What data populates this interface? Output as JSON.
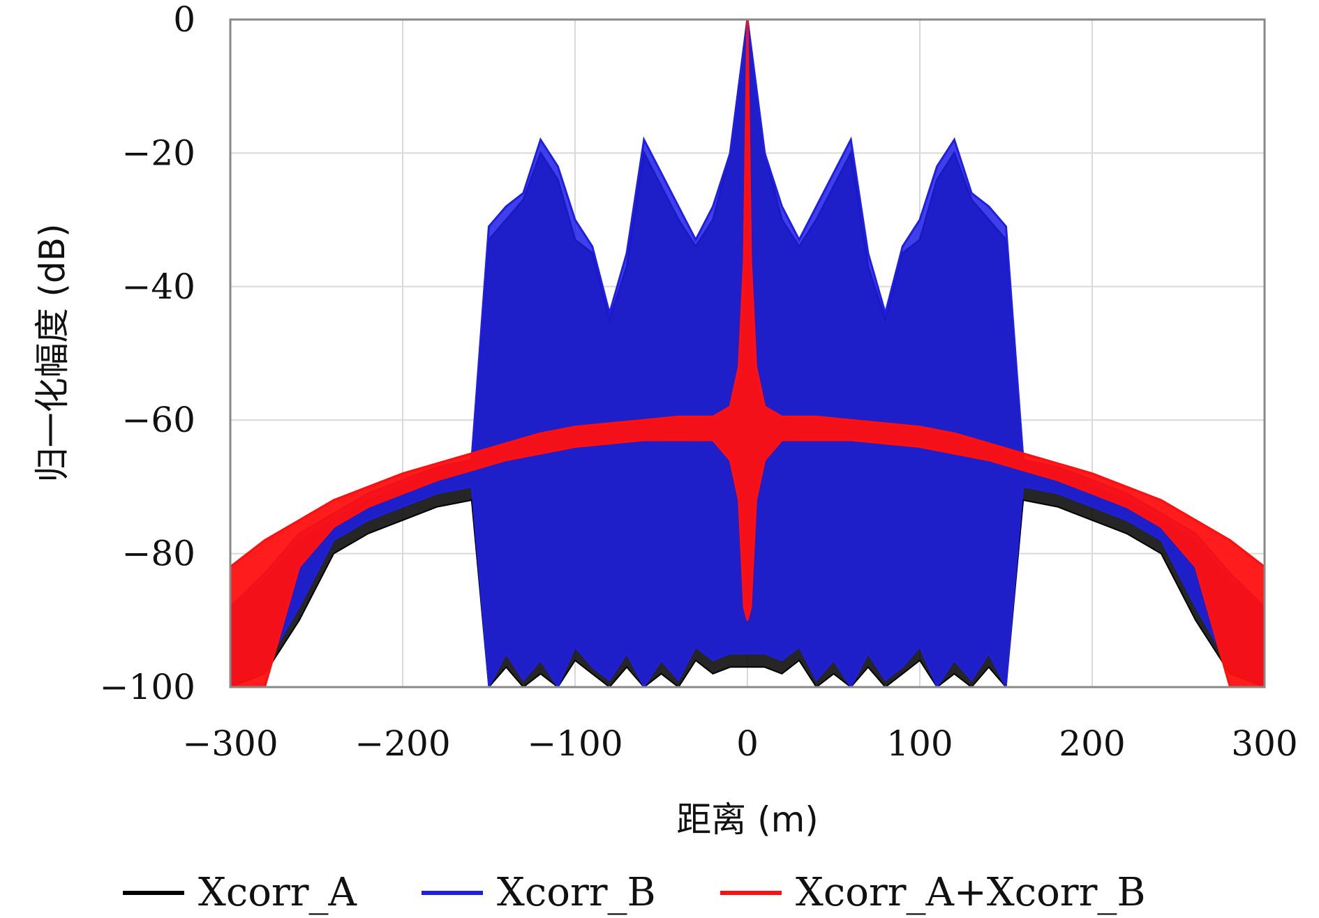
{
  "chart_data": {
    "type": "line",
    "title": "",
    "xlabel": "距离 (m)",
    "ylabel": "归一化幅度 (dB)",
    "xlim": [
      -300,
      300
    ],
    "ylim": [
      -100,
      0
    ],
    "grid": true,
    "x_ticks": [
      -300,
      -200,
      -100,
      0,
      100,
      200,
      300
    ],
    "y_ticks": [
      0,
      -20,
      -40,
      -60,
      -80,
      -100
    ],
    "x_tick_labels": [
      "−300",
      "−200",
      "−100",
      "0",
      "100",
      "200",
      "300"
    ],
    "y_tick_labels": [
      "0",
      "−20",
      "−40",
      "−60",
      "−80",
      "−100"
    ],
    "legend_position": "bottom",
    "series": [
      {
        "name": "Xcorr_A",
        "color": "#000000",
        "x": [
          -300,
          -280,
          -260,
          -240,
          -220,
          -200,
          -180,
          -160,
          -150,
          -140,
          -130,
          -120,
          -110,
          -100,
          -90,
          -80,
          -70,
          -60,
          -50,
          -40,
          -30,
          -20,
          -10,
          0,
          10,
          20,
          30,
          40,
          50,
          60,
          70,
          80,
          90,
          100,
          110,
          120,
          130,
          140,
          150,
          160,
          180,
          200,
          220,
          240,
          260,
          280,
          300
        ],
        "upper": [
          -88,
          -84,
          -78,
          -75,
          -72,
          -70,
          -67,
          -66,
          -33,
          -30,
          -27,
          -20,
          -24,
          -33,
          -35,
          -45,
          -37,
          -20,
          -25,
          -30,
          -34,
          -30,
          -20,
          0,
          -20,
          -30,
          -34,
          -30,
          -25,
          -20,
          -37,
          -45,
          -35,
          -33,
          -24,
          -20,
          -27,
          -30,
          -33,
          -66,
          -67,
          -70,
          -72,
          -75,
          -78,
          -84,
          -88
        ],
        "lower": [
          -100,
          -98,
          -90,
          -80,
          -77,
          -75,
          -73,
          -72,
          -100,
          -97,
          -100,
          -98,
          -100,
          -96,
          -98,
          -100,
          -97,
          -100,
          -98,
          -100,
          -96,
          -98,
          -97,
          -97,
          -97,
          -98,
          -96,
          -100,
          -98,
          -100,
          -97,
          -100,
          -98,
          -96,
          -100,
          -98,
          -100,
          -97,
          -100,
          -72,
          -73,
          -75,
          -77,
          -80,
          -90,
          -98,
          -100
        ]
      },
      {
        "name": "Xcorr_B",
        "color": "#1e1ee6",
        "x": [
          -300,
          -280,
          -260,
          -240,
          -220,
          -200,
          -180,
          -160,
          -150,
          -140,
          -130,
          -120,
          -110,
          -100,
          -90,
          -80,
          -70,
          -60,
          -50,
          -40,
          -30,
          -20,
          -10,
          0,
          10,
          20,
          30,
          40,
          50,
          60,
          70,
          80,
          90,
          100,
          110,
          120,
          130,
          140,
          150,
          160,
          180,
          200,
          220,
          240,
          260,
          280,
          300
        ],
        "upper": [
          -88,
          -83,
          -77,
          -74,
          -71,
          -69,
          -67,
          -66,
          -31,
          -28,
          -26,
          -18,
          -22,
          -30,
          -34,
          -44,
          -35,
          -18,
          -23,
          -28,
          -33,
          -28,
          -20,
          0,
          -20,
          -28,
          -33,
          -28,
          -23,
          -18,
          -35,
          -44,
          -34,
          -30,
          -22,
          -18,
          -26,
          -28,
          -31,
          -66,
          -67,
          -69,
          -71,
          -74,
          -77,
          -83,
          -88
        ],
        "lower": [
          -100,
          -97,
          -88,
          -78,
          -75,
          -73,
          -71,
          -70,
          -100,
          -95,
          -99,
          -96,
          -100,
          -94,
          -97,
          -99,
          -95,
          -100,
          -96,
          -99,
          -94,
          -96,
          -95,
          -95,
          -95,
          -96,
          -94,
          -99,
          -96,
          -100,
          -95,
          -99,
          -97,
          -94,
          -100,
          -96,
          -99,
          -95,
          -100,
          -70,
          -71,
          -73,
          -75,
          -78,
          -88,
          -97,
          -100
        ]
      },
      {
        "name": "Xcorr_A+Xcorr_B",
        "color": "#ff1010",
        "x": [
          -300,
          -280,
          -260,
          -240,
          -220,
          -200,
          -180,
          -160,
          -140,
          -120,
          -100,
          -80,
          -60,
          -40,
          -20,
          -10,
          -5,
          -2,
          0,
          2,
          5,
          10,
          20,
          40,
          60,
          80,
          100,
          120,
          140,
          160,
          180,
          200,
          220,
          240,
          260,
          280,
          300
        ],
        "upper": [
          -82,
          -78,
          -75,
          -72,
          -70,
          -68,
          -66.5,
          -65,
          -63.5,
          -62,
          -61,
          -60.5,
          -60,
          -59.5,
          -59.5,
          -58,
          -52,
          -36,
          0,
          -36,
          -52,
          -58,
          -59.5,
          -59.5,
          -60,
          -60.5,
          -61,
          -62,
          -63.5,
          -65,
          -66.5,
          -68,
          -70,
          -72,
          -75,
          -78,
          -82
        ],
        "lower": [
          -100,
          -100,
          -82,
          -76,
          -73,
          -71,
          -69,
          -67.5,
          -66,
          -65,
          -64,
          -63.5,
          -63,
          -63,
          -63,
          -66,
          -72,
          -88,
          -90,
          -88,
          -72,
          -66,
          -63,
          -63,
          -63,
          -63.5,
          -64,
          -65,
          -66,
          -67.5,
          -69,
          -71,
          -73,
          -76,
          -82,
          -100,
          -100
        ]
      }
    ]
  }
}
